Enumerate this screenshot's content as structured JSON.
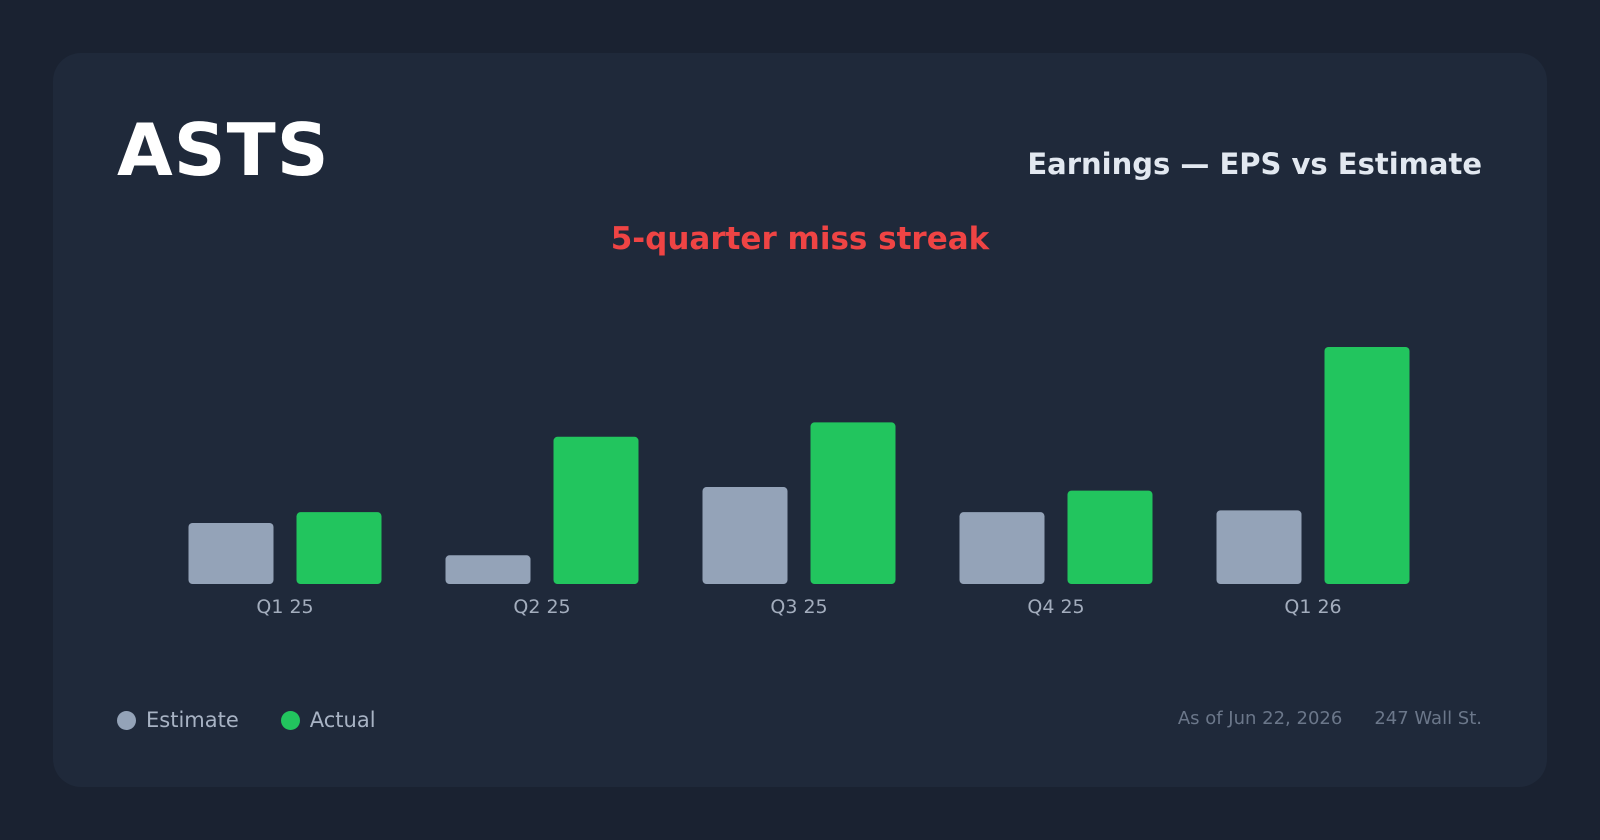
{
  "header": {
    "ticker": "ASTS",
    "subtitle": "Earnings — EPS vs Estimate",
    "streak": "5-quarter miss streak"
  },
  "legend": {
    "estimate": "Estimate",
    "actual": "Actual"
  },
  "footer": {
    "as_of": "As of Jun 22, 2026",
    "source": "247 Wall St."
  },
  "colors": {
    "estimate": "#94a3b8",
    "actual": "#22c55e",
    "streak": "#ef4444"
  },
  "chart_data": {
    "type": "bar",
    "categories": [
      "Q1 25",
      "Q2 25",
      "Q3 25",
      "Q4 25",
      "Q1 26"
    ],
    "series": [
      {
        "name": "Estimate",
        "values": [
          0.17,
          0.08,
          0.27,
          0.2,
          0.205
        ]
      },
      {
        "name": "Actual",
        "values": [
          0.2,
          0.41,
          0.45,
          0.26,
          0.66
        ]
      }
    ],
    "ylim": [
      0,
      0.66
    ],
    "grid": false,
    "legend": "bottom-left"
  }
}
